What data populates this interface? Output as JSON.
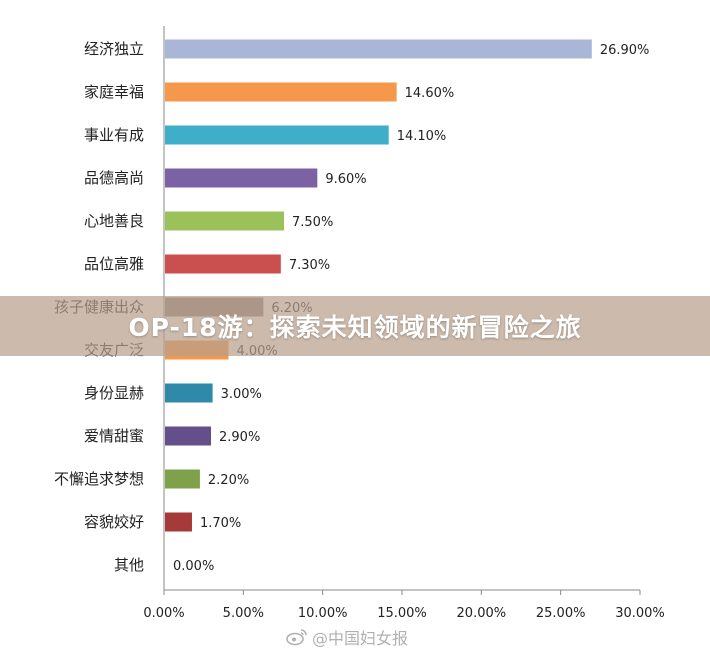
{
  "chart_data": {
    "type": "bar",
    "orientation": "horizontal",
    "title": "",
    "xlabel": "",
    "ylabel": "",
    "xlim": [
      0,
      30
    ],
    "x_ticks": [
      "0.00%",
      "5.00%",
      "10.00%",
      "15.00%",
      "20.00%",
      "25.00%",
      "30.00%"
    ],
    "grid": false,
    "categories": [
      "经济独立",
      "家庭幸福",
      "事业有成",
      "品德高尚",
      "心地善良",
      "品位高雅",
      "孩子健康出众",
      "交友广泛",
      "身份显赫",
      "爱情甜蜜",
      "不懈追求梦想",
      "容貌姣好",
      "其他"
    ],
    "values": [
      26.9,
      14.6,
      14.1,
      9.6,
      7.5,
      7.3,
      6.2,
      4.0,
      3.0,
      2.9,
      2.2,
      1.7,
      0.0
    ],
    "value_labels": [
      "26.90%",
      "14.60%",
      "14.10%",
      "9.60%",
      "7.50%",
      "7.30%",
      "6.20%",
      "4.00%",
      "3.00%",
      "2.90%",
      "2.20%",
      "1.70%",
      "0.00%"
    ],
    "colors": [
      "#a9b6d8",
      "#f5984b",
      "#3eaec9",
      "#7b62a5",
      "#9bc25a",
      "#c9504f",
      "#8c7f7f",
      "#f5984b",
      "#2e8aa8",
      "#634f8a",
      "#7fa14a",
      "#a53a3b",
      "#a9b6d8"
    ]
  },
  "overlay": {
    "banner_text": "OP-18游：探索未知领域的新冒险之旅",
    "watermark_text": "@中国妇女报",
    "watermark_icon": "weibo-icon"
  }
}
